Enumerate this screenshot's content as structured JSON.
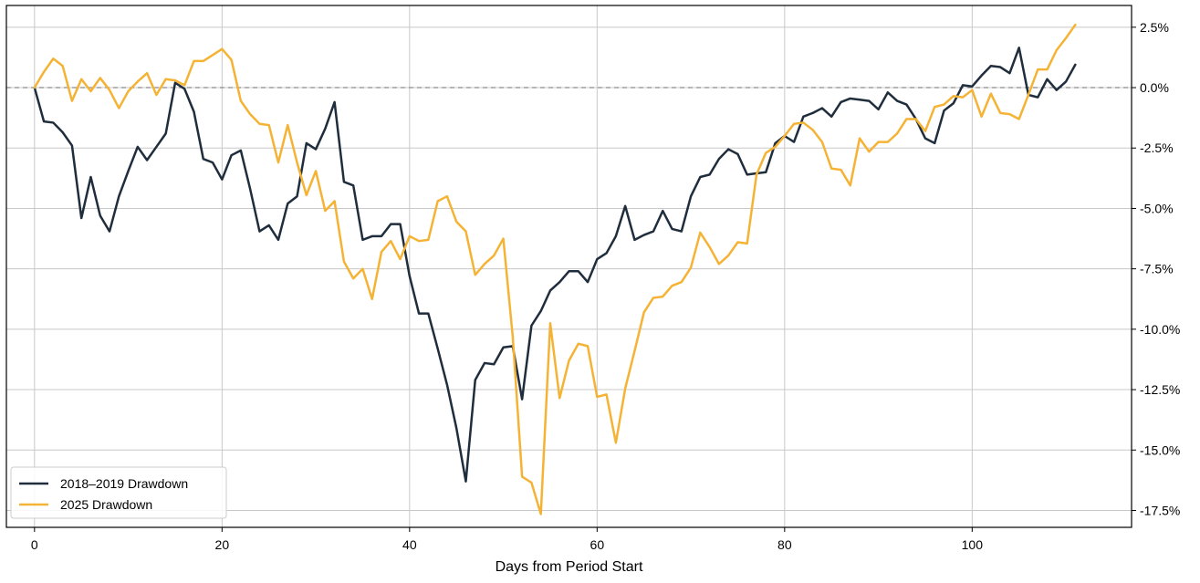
{
  "colors": {
    "background": "#ffffff",
    "grid": "#c8c8c8",
    "zero_line": "#8a8a8a",
    "axis": "#000000"
  },
  "chart_data": {
    "type": "line",
    "title": "",
    "xlabel": "Days from Period Start",
    "ylabel": "",
    "xlim": [
      -3,
      117
    ],
    "ylim": [
      -18.2,
      3.4
    ],
    "grid": true,
    "y_axis_side": "right",
    "reference_line": {
      "y": 0,
      "style": "dashed"
    },
    "legend": {
      "location": "lower-left"
    },
    "x_ticks": [
      {
        "value": 0,
        "label": "0"
      },
      {
        "value": 20,
        "label": "20"
      },
      {
        "value": 40,
        "label": "40"
      },
      {
        "value": 60,
        "label": "60"
      },
      {
        "value": 80,
        "label": "80"
      },
      {
        "value": 100,
        "label": "100"
      }
    ],
    "y_ticks": [
      {
        "value": 2.5,
        "label": "2.5%"
      },
      {
        "value": 0,
        "label": "0.0%"
      },
      {
        "value": -2.5,
        "label": "-2.5%"
      },
      {
        "value": -5,
        "label": "-5.0%"
      },
      {
        "value": -7.5,
        "label": "-7.5%"
      },
      {
        "value": -10,
        "label": "-10.0%"
      },
      {
        "value": -12.5,
        "label": "-12.5%"
      },
      {
        "value": -15,
        "label": "-15.0%"
      },
      {
        "value": -17.5,
        "label": "-17.5%"
      }
    ],
    "series": [
      {
        "name": "2018–2019 Drawdown",
        "color": "#1f2d3d",
        "values": [
          0.0,
          -1.4,
          -1.45,
          -1.85,
          -2.4,
          -5.4,
          -3.7,
          -5.3,
          -5.95,
          -4.5,
          -3.45,
          -2.45,
          -3.0,
          -2.45,
          -1.9,
          0.2,
          -0.05,
          -1.0,
          -2.95,
          -3.1,
          -3.8,
          -2.8,
          -2.6,
          -4.2,
          -5.95,
          -5.7,
          -6.3,
          -4.8,
          -4.5,
          -2.3,
          -2.55,
          -1.7,
          -0.6,
          -3.9,
          -4.05,
          -6.3,
          -6.15,
          -6.15,
          -5.65,
          -5.65,
          -7.8,
          -9.35,
          -9.35,
          -10.8,
          -12.3,
          -14.1,
          -16.3,
          -12.1,
          -11.4,
          -11.45,
          -10.75,
          -10.7,
          -12.9,
          -9.85,
          -9.25,
          -8.4,
          -8.05,
          -7.6,
          -7.6,
          -8.05,
          -7.1,
          -6.85,
          -6.15,
          -4.9,
          -6.3,
          -6.1,
          -5.95,
          -5.1,
          -5.85,
          -5.95,
          -4.5,
          -3.7,
          -3.6,
          -2.95,
          -2.55,
          -2.75,
          -3.6,
          -3.55,
          -3.5,
          -2.3,
          -2.0,
          -2.25,
          -1.2,
          -1.05,
          -0.85,
          -1.2,
          -0.6,
          -0.45,
          -0.5,
          -0.55,
          -0.9,
          -0.2,
          -0.55,
          -0.7,
          -1.3,
          -2.1,
          -2.3,
          -0.95,
          -0.65,
          0.1,
          0.05,
          0.5,
          0.9,
          0.85,
          0.6,
          1.65,
          -0.3,
          -0.4,
          0.35,
          -0.1,
          0.25,
          0.95
        ]
      },
      {
        "name": "2025 Drawdown",
        "color": "#f5b335",
        "values": [
          0.0,
          0.65,
          1.2,
          0.9,
          -0.55,
          0.35,
          -0.15,
          0.4,
          -0.1,
          -0.85,
          -0.15,
          0.25,
          0.6,
          -0.3,
          0.35,
          0.3,
          0.1,
          1.1,
          1.1,
          1.35,
          1.6,
          1.15,
          -0.55,
          -1.1,
          -1.5,
          -1.55,
          -3.1,
          -1.55,
          -3.1,
          -4.45,
          -3.45,
          -5.1,
          -4.7,
          -7.2,
          -7.9,
          -7.5,
          -8.75,
          -6.8,
          -6.35,
          -7.1,
          -6.15,
          -6.35,
          -6.3,
          -4.7,
          -4.5,
          -5.55,
          -5.95,
          -7.75,
          -7.3,
          -6.95,
          -6.25,
          -10.3,
          -16.1,
          -16.35,
          -17.65,
          -9.75,
          -12.85,
          -11.3,
          -10.6,
          -10.7,
          -12.8,
          -12.7,
          -14.7,
          -12.45,
          -10.9,
          -9.3,
          -8.7,
          -8.65,
          -8.2,
          -8.05,
          -7.45,
          -6.0,
          -6.6,
          -7.3,
          -6.95,
          -6.4,
          -6.45,
          -3.6,
          -2.7,
          -2.45,
          -2.0,
          -1.5,
          -1.45,
          -1.75,
          -2.25,
          -3.35,
          -3.4,
          -4.05,
          -2.1,
          -2.65,
          -2.25,
          -2.25,
          -1.9,
          -1.3,
          -1.3,
          -1.8,
          -0.8,
          -0.7,
          -0.35,
          -0.4,
          -0.1,
          -1.2,
          -0.25,
          -1.05,
          -1.1,
          -1.3,
          -0.3,
          0.75,
          0.75,
          1.55,
          2.05,
          2.6
        ]
      }
    ]
  }
}
